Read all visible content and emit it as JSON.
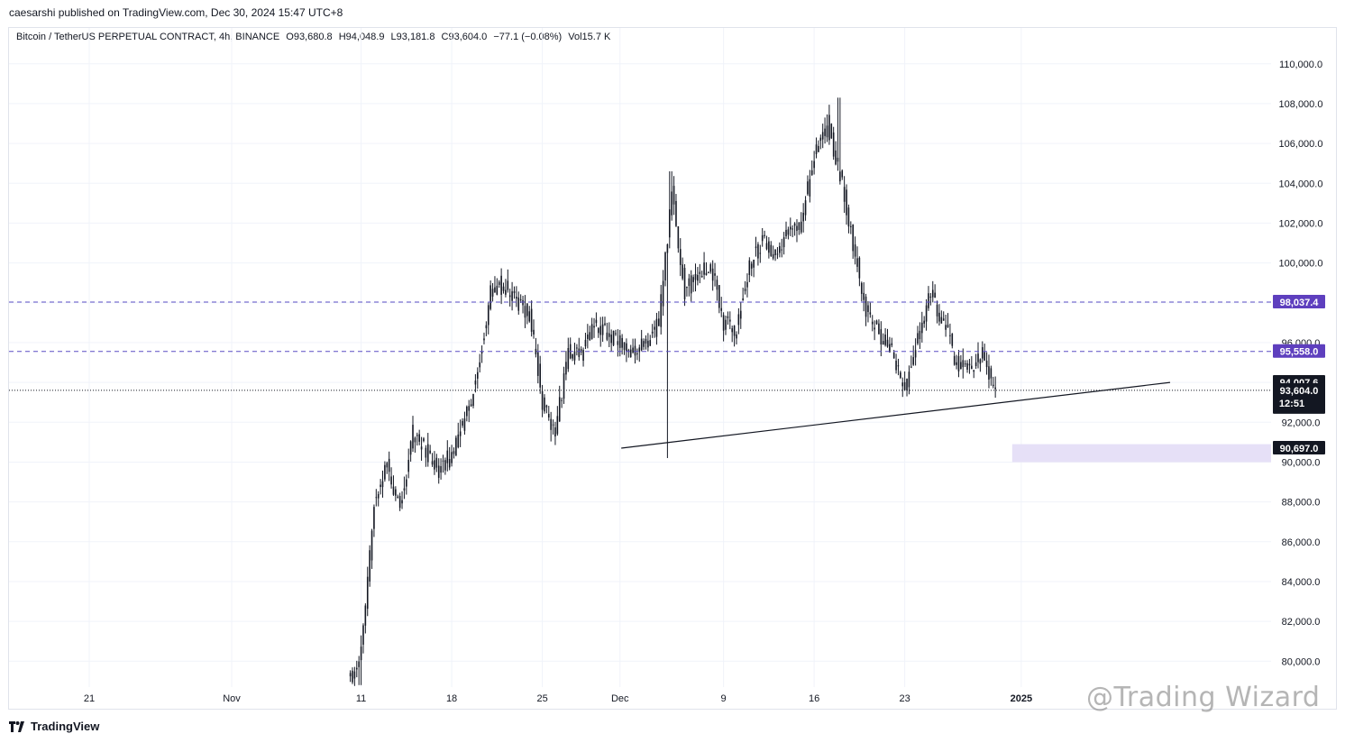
{
  "header": {
    "publisher_line": "caesarshi published on TradingView.com, Dec 30, 2024 15:47 UTC+8"
  },
  "legend": {
    "symbol": "Bitcoin / TetherUS PERPETUAL CONTRACT, 4h, BINANCE",
    "open": "O93,680.8",
    "high": "H94,048.9",
    "low": "L93,181.8",
    "close": "C93,604.0",
    "change": "−77.1 (−0.08%)",
    "volume": "Vol15.7 K"
  },
  "price_tags": {
    "line_upper": "98,037.4",
    "line_lower": "95,558.0",
    "high_mark": "94,007.6",
    "last_price": "93,604.0",
    "countdown": "12:51",
    "zone_label": "90,697.0"
  },
  "footer": {
    "brand": "TradingView",
    "watermark": "@Trading Wizard"
  },
  "colors": {
    "candle": "#131722",
    "dashed_lines": "#5b4fc4",
    "tag_purple": "#5e3fbe",
    "tag_dark": "#131722",
    "zone_fill": "#e6e0f7"
  },
  "chart_data": {
    "type": "candlestick",
    "y_axis_ticks": [
      80000,
      82000,
      84000,
      86000,
      88000,
      90000,
      92000,
      94000,
      96000,
      98000,
      100000,
      102000,
      104000,
      106000,
      108000,
      110000
    ],
    "y_axis_labels": [
      "80,000.0",
      "82,000.0",
      "84,000.0",
      "86,000.0",
      "88,000.0",
      "90,000.0",
      "92,000.0",
      "94,000.0",
      "96,000.0",
      "98,000.0",
      "100,000.0",
      "102,000.0",
      "104,000.0",
      "106,000.0",
      "108,000.0",
      "110,000.0"
    ],
    "ylim": [
      78700,
      111800
    ],
    "x_axis_labels": [
      "21",
      "Nov",
      "11",
      "18",
      "25",
      "Dec",
      "9",
      "16",
      "23",
      "2025"
    ],
    "x_axis_days": [
      -10,
      1,
      11,
      18,
      25,
      31,
      39,
      46,
      53,
      62
    ],
    "x_day_range": [
      -16.2,
      81.3
    ],
    "price_series_daily_close": [
      {
        "day": 11,
        "close": 80500
      },
      {
        "day": 12,
        "close": 88000
      },
      {
        "day": 13,
        "close": 90000
      },
      {
        "day": 14,
        "close": 87500
      },
      {
        "day": 15,
        "close": 91500
      },
      {
        "day": 16,
        "close": 90500
      },
      {
        "day": 17,
        "close": 89500
      },
      {
        "day": 18,
        "close": 90500
      },
      {
        "day": 19,
        "close": 92000
      },
      {
        "day": 20,
        "close": 94500
      },
      {
        "day": 21,
        "close": 98500
      },
      {
        "day": 22,
        "close": 99000
      },
      {
        "day": 23,
        "close": 98000
      },
      {
        "day": 24,
        "close": 97500
      },
      {
        "day": 25,
        "close": 93000
      },
      {
        "day": 26,
        "close": 91500
      },
      {
        "day": 27,
        "close": 95500
      },
      {
        "day": 28,
        "close": 95500
      },
      {
        "day": 29,
        "close": 97000
      },
      {
        "day": 30,
        "close": 96500
      },
      {
        "day": 31,
        "close": 96000
      },
      {
        "day": 32,
        "close": 95500
      },
      {
        "day": 33,
        "close": 96000
      },
      {
        "day": 34,
        "close": 97000
      },
      {
        "day": 35,
        "close": 103500
      },
      {
        "day": 36,
        "close": 98500
      },
      {
        "day": 37,
        "close": 99500
      },
      {
        "day": 38,
        "close": 100000
      },
      {
        "day": 39,
        "close": 97000
      },
      {
        "day": 40,
        "close": 96500
      },
      {
        "day": 41,
        "close": 100000
      },
      {
        "day": 42,
        "close": 101000
      },
      {
        "day": 43,
        "close": 100500
      },
      {
        "day": 44,
        "close": 101500
      },
      {
        "day": 45,
        "close": 102000
      },
      {
        "day": 46,
        "close": 105500
      },
      {
        "day": 47,
        "close": 107000
      },
      {
        "day": 48,
        "close": 104500
      },
      {
        "day": 49,
        "close": 101000
      },
      {
        "day": 50,
        "close": 97500
      },
      {
        "day": 51,
        "close": 96500
      },
      {
        "day": 52,
        "close": 95500
      },
      {
        "day": 53,
        "close": 93500
      },
      {
        "day": 54,
        "close": 96500
      },
      {
        "day": 55,
        "close": 98500
      },
      {
        "day": 56,
        "close": 97000
      },
      {
        "day": 57,
        "close": 95000
      },
      {
        "day": 58,
        "close": 94500
      },
      {
        "day": 59,
        "close": 95500
      },
      {
        "day": 60,
        "close": 93600
      }
    ],
    "key_lows_highs": [
      {
        "day": 11,
        "value": 78800,
        "kind": "low"
      },
      {
        "day": 35.5,
        "value": 90200,
        "kind": "wick_low"
      },
      {
        "day": 35,
        "value": 104600,
        "kind": "high"
      },
      {
        "day": 48,
        "value": 108300,
        "kind": "high"
      },
      {
        "day": 51.2,
        "value": 92200,
        "kind": "low"
      },
      {
        "day": 56.2,
        "value": 99900,
        "kind": "high"
      }
    ],
    "horizontal_lines": [
      {
        "value": 98037.4,
        "style": "dashed"
      },
      {
        "value": 95558.0,
        "style": "dashed"
      },
      {
        "value": 93604.0,
        "style": "dotted"
      }
    ],
    "trendline": {
      "from": {
        "day": 31.1,
        "value": 90700
      },
      "to": {
        "day": 73.5,
        "value": 94000
      }
    },
    "zone": {
      "from_day": 61.3,
      "to_day": 81.3,
      "low": 90000,
      "high": 90900
    }
  }
}
